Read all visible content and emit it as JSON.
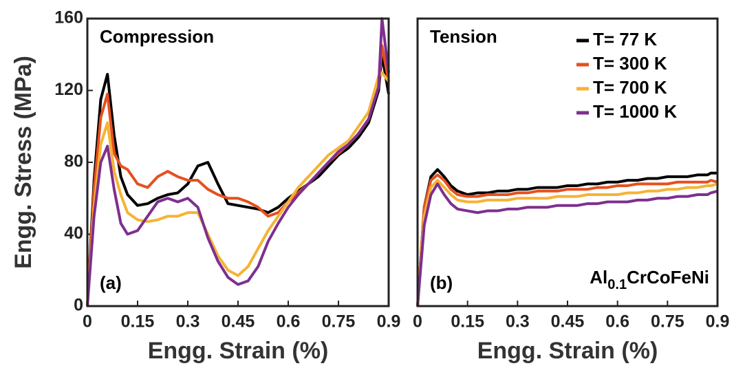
{
  "chart_data": [
    {
      "type": "line",
      "panel_title": "Compression",
      "panel_label": "(a)",
      "xlabel": "Engg. Strain (%)",
      "ylabel": "Engg. Stress (MPa)",
      "xlim": [
        0,
        0.9
      ],
      "ylim": [
        0,
        160
      ],
      "xticks": [
        0,
        0.15,
        0.3,
        0.45,
        0.6,
        0.75,
        0.9
      ],
      "yticks": [
        0,
        40,
        80,
        120,
        160
      ],
      "x": [
        0,
        0.02,
        0.04,
        0.06,
        0.08,
        0.1,
        0.12,
        0.15,
        0.18,
        0.21,
        0.24,
        0.27,
        0.3,
        0.33,
        0.36,
        0.39,
        0.42,
        0.45,
        0.48,
        0.51,
        0.54,
        0.57,
        0.6,
        0.63,
        0.66,
        0.69,
        0.72,
        0.75,
        0.78,
        0.81,
        0.84,
        0.87,
        0.88,
        0.9
      ],
      "series": [
        {
          "color": "#000000",
          "values": [
            0,
            70,
            115,
            129,
            95,
            72,
            62,
            56,
            57,
            60,
            62,
            63,
            68,
            78,
            80,
            68,
            57,
            56,
            55,
            54,
            52,
            55,
            60,
            64,
            68,
            72,
            78,
            84,
            88,
            94,
            102,
            120,
            140,
            118
          ]
        },
        {
          "color": "#e5501f",
          "values": [
            0,
            65,
            105,
            118,
            85,
            78,
            76,
            68,
            66,
            72,
            75,
            72,
            70,
            70,
            65,
            62,
            60,
            60,
            58,
            55,
            50,
            52,
            58,
            63,
            68,
            74,
            80,
            85,
            90,
            96,
            104,
            122,
            145,
            125
          ]
        },
        {
          "color": "#f5b335",
          "values": [
            0,
            55,
            90,
            102,
            75,
            62,
            52,
            48,
            47,
            48,
            50,
            50,
            52,
            52,
            40,
            28,
            20,
            17,
            22,
            32,
            42,
            50,
            58,
            66,
            72,
            78,
            84,
            88,
            92,
            100,
            108,
            128,
            130,
            125
          ]
        },
        {
          "color": "#7e2f8e",
          "values": [
            0,
            50,
            80,
            89,
            65,
            46,
            40,
            42,
            50,
            58,
            60,
            58,
            60,
            55,
            38,
            25,
            16,
            12,
            14,
            22,
            36,
            46,
            55,
            62,
            68,
            74,
            80,
            86,
            90,
            96,
            104,
            122,
            160,
            130
          ]
        }
      ]
    },
    {
      "type": "line",
      "panel_title": "Tension",
      "panel_label": "(b)",
      "formula": [
        "Al",
        "0.1",
        "CrCoFeNi"
      ],
      "xlabel": "Engg. Strain (%)",
      "legend": "upper right",
      "xlim": [
        0,
        0.9
      ],
      "ylim": [
        0,
        160
      ],
      "xticks": [
        0,
        0.15,
        0.3,
        0.45,
        0.6,
        0.75,
        0.9
      ],
      "x": [
        0,
        0.02,
        0.04,
        0.06,
        0.08,
        0.1,
        0.12,
        0.15,
        0.18,
        0.21,
        0.24,
        0.27,
        0.3,
        0.33,
        0.36,
        0.39,
        0.42,
        0.45,
        0.48,
        0.51,
        0.54,
        0.57,
        0.6,
        0.63,
        0.66,
        0.69,
        0.72,
        0.75,
        0.78,
        0.81,
        0.84,
        0.87,
        0.88,
        0.9
      ],
      "series": [
        {
          "name": "T= 77 K",
          "color": "#000000",
          "values": [
            0,
            55,
            72,
            76,
            72,
            67,
            64,
            62,
            63,
            63,
            64,
            64,
            65,
            65,
            66,
            66,
            66,
            67,
            67,
            68,
            68,
            69,
            69,
            70,
            70,
            71,
            71,
            72,
            72,
            72,
            73,
            73,
            74,
            74
          ]
        },
        {
          "name": "T= 300 K",
          "color": "#e5501f",
          "values": [
            0,
            55,
            70,
            73,
            70,
            65,
            62,
            61,
            61,
            62,
            62,
            62,
            63,
            63,
            64,
            64,
            64,
            65,
            65,
            65,
            66,
            66,
            67,
            67,
            68,
            68,
            68,
            68,
            69,
            69,
            69,
            69,
            70,
            69
          ]
        },
        {
          "name": "T= 700 K",
          "color": "#f5b335",
          "values": [
            0,
            50,
            66,
            70,
            66,
            62,
            59,
            58,
            58,
            59,
            59,
            59,
            60,
            60,
            60,
            60,
            61,
            61,
            61,
            62,
            62,
            62,
            62,
            63,
            63,
            64,
            64,
            65,
            65,
            66,
            66,
            67,
            67,
            68
          ]
        },
        {
          "name": "T= 1000 K",
          "color": "#7e2f8e",
          "values": [
            0,
            45,
            62,
            68,
            62,
            57,
            54,
            53,
            52,
            53,
            53,
            54,
            54,
            55,
            55,
            55,
            56,
            56,
            56,
            57,
            57,
            58,
            58,
            58,
            59,
            59,
            60,
            60,
            61,
            61,
            62,
            62,
            63,
            64
          ]
        }
      ]
    }
  ]
}
